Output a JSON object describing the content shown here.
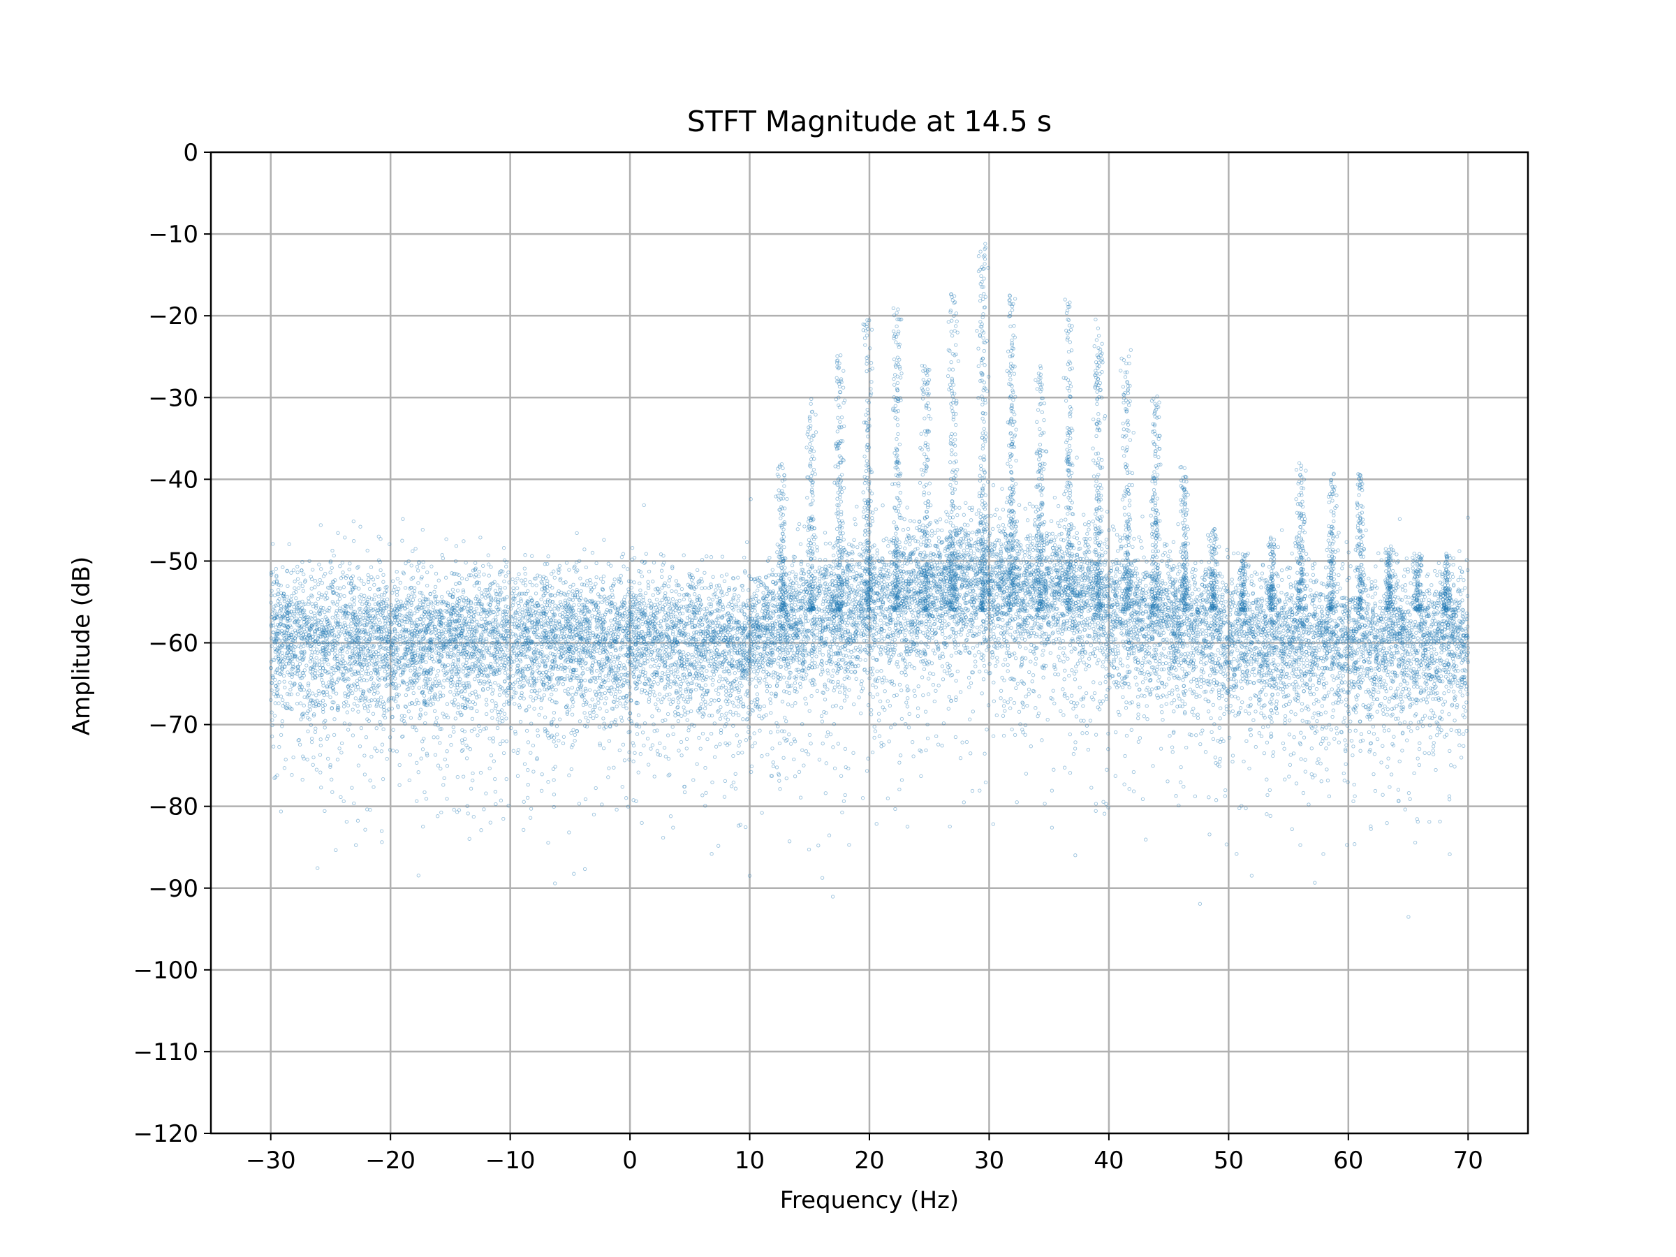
{
  "chart_data": {
    "type": "scatter",
    "title": "STFT Magnitude at 14.5 s",
    "xlabel": "Frequency (Hz)",
    "ylabel": "Amplitude (dB)",
    "xlim": [
      -35,
      75
    ],
    "ylim": [
      -120,
      0
    ],
    "xticks": [
      -30,
      -20,
      -10,
      0,
      10,
      20,
      30,
      40,
      50,
      60,
      70
    ],
    "yticks": [
      0,
      -10,
      -20,
      -30,
      -40,
      -50,
      -60,
      -70,
      -80,
      -90,
      -100,
      -110,
      -120
    ],
    "xtick_labels": [
      "−30",
      "−20",
      "−10",
      "0",
      "10",
      "20",
      "30",
      "40",
      "50",
      "60",
      "70"
    ],
    "ytick_labels": [
      "0",
      "−10",
      "−20",
      "−30",
      "−40",
      "−50",
      "−60",
      "−70",
      "−80",
      "−90",
      "−100",
      "−110",
      "−120"
    ],
    "grid": true,
    "marker_color": "#1f77b4",
    "x_range": [
      -30,
      70
    ],
    "noise_floor_db": -60,
    "harmonic_peaks": [
      {
        "x": 12.7,
        "y": -38
      },
      {
        "x": 15.1,
        "y": -30
      },
      {
        "x": 17.5,
        "y": -24
      },
      {
        "x": 19.9,
        "y": -20
      },
      {
        "x": 22.3,
        "y": -18
      },
      {
        "x": 24.7,
        "y": -26
      },
      {
        "x": 27.0,
        "y": -17
      },
      {
        "x": 29.5,
        "y": -11
      },
      {
        "x": 31.9,
        "y": -17
      },
      {
        "x": 34.3,
        "y": -26
      },
      {
        "x": 36.7,
        "y": -18
      },
      {
        "x": 39.1,
        "y": -20
      },
      {
        "x": 41.5,
        "y": -24
      },
      {
        "x": 43.9,
        "y": -29
      },
      {
        "x": 46.3,
        "y": -38
      },
      {
        "x": 48.7,
        "y": -46
      },
      {
        "x": 51.2,
        "y": -49
      },
      {
        "x": 53.6,
        "y": -47
      },
      {
        "x": 56.0,
        "y": -38
      },
      {
        "x": 58.6,
        "y": -39
      },
      {
        "x": 61.0,
        "y": -39
      },
      {
        "x": 63.4,
        "y": -48
      },
      {
        "x": 65.8,
        "y": -49
      },
      {
        "x": 68.2,
        "y": -49
      }
    ]
  }
}
